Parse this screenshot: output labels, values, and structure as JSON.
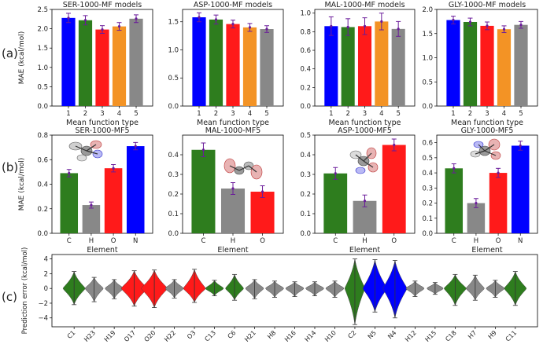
{
  "panel_labels": [
    "(a)",
    "(b)",
    "(c)"
  ],
  "colors": {
    "blue": "#0000ff",
    "green": "#2e7d1e",
    "red": "#ff1a1a",
    "orange": "#f39325",
    "gray": "#888888",
    "error": "#6a1b9a"
  },
  "chart_data": [
    {
      "type": "bar",
      "panel": "(a)",
      "title": "SER-1000-MF models",
      "xlabel": "Mean function type",
      "ylabel": "MAE (kcal/mol)",
      "categories": [
        "1",
        "2",
        "3",
        "4",
        "5"
      ],
      "values": [
        2.28,
        2.22,
        1.98,
        2.06,
        2.26
      ],
      "errors": [
        0.12,
        0.12,
        0.1,
        0.1,
        0.1
      ],
      "colors": [
        "#0000ff",
        "#2e7d1e",
        "#ff1a1a",
        "#f39325",
        "#888888"
      ],
      "ylim": [
        0,
        2.5
      ],
      "yticks": [
        0,
        0.5,
        1.0,
        1.5,
        2.0,
        2.5
      ],
      "ytick_labels": [
        "0.0",
        "0.5",
        "1.0",
        "1.5",
        "2.0",
        "2.5"
      ]
    },
    {
      "type": "bar",
      "panel": "(a)",
      "title": "ASP-1000-MF models",
      "xlabel": "Mean function type",
      "ylabel": "",
      "categories": [
        "1",
        "2",
        "3",
        "4",
        "5"
      ],
      "values": [
        1.58,
        1.54,
        1.46,
        1.4,
        1.37
      ],
      "errors": [
        0.08,
        0.08,
        0.07,
        0.07,
        0.06
      ],
      "colors": [
        "#0000ff",
        "#2e7d1e",
        "#ff1a1a",
        "#f39325",
        "#888888"
      ],
      "ylim": [
        0,
        1.72
      ],
      "yticks": [
        0,
        0.5,
        1.0,
        1.5
      ],
      "ytick_labels": [
        "0.0",
        "0.5",
        "1.0",
        "1.5"
      ]
    },
    {
      "type": "bar",
      "panel": "(a)",
      "title": "MAL-1000-MF models",
      "xlabel": "Mean function type",
      "ylabel": "",
      "categories": [
        "1",
        "2",
        "3",
        "4",
        "5"
      ],
      "values": [
        0.86,
        0.85,
        0.86,
        0.91,
        0.83
      ],
      "errors": [
        0.1,
        0.09,
        0.09,
        0.09,
        0.08
      ],
      "colors": [
        "#0000ff",
        "#2e7d1e",
        "#ff1a1a",
        "#f39325",
        "#888888"
      ],
      "ylim": [
        0,
        1.04
      ],
      "yticks": [
        0,
        0.2,
        0.4,
        0.6,
        0.8,
        1.0
      ],
      "ytick_labels": [
        "0.0",
        "0.2",
        "0.4",
        "0.6",
        "0.8",
        "1.0"
      ]
    },
    {
      "type": "bar",
      "panel": "(a)",
      "title": "GLY-1000-MF models",
      "xlabel": "Mean function type",
      "ylabel": "",
      "categories": [
        "1",
        "2",
        "3",
        "4",
        "5"
      ],
      "values": [
        1.78,
        1.74,
        1.66,
        1.59,
        1.68
      ],
      "errors": [
        0.08,
        0.08,
        0.08,
        0.07,
        0.07
      ],
      "colors": [
        "#0000ff",
        "#2e7d1e",
        "#ff1a1a",
        "#f39325",
        "#888888"
      ],
      "ylim": [
        0,
        2.0
      ],
      "yticks": [
        0,
        0.5,
        1.0,
        1.5,
        2.0
      ],
      "ytick_labels": [
        "0.0",
        "0.5",
        "1.0",
        "1.5",
        "2.0"
      ]
    },
    {
      "type": "bar",
      "panel": "(b)",
      "title": "SER-1000-MF5",
      "xlabel": "Element",
      "ylabel": "MAE (kcal/mol)",
      "categories": [
        "C",
        "H",
        "O",
        "N"
      ],
      "values": [
        0.49,
        0.23,
        0.53,
        0.71
      ],
      "errors": [
        0.03,
        0.025,
        0.03,
        0.03
      ],
      "colors": [
        "#2e7d1e",
        "#888888",
        "#ff1a1a",
        "#0000ff"
      ],
      "ylim": [
        0,
        0.8
      ],
      "yticks": [
        0,
        0.2,
        0.4,
        0.6,
        0.8
      ],
      "ytick_labels": [
        "0.0",
        "0.2",
        "0.4",
        "0.6",
        "0.8"
      ]
    },
    {
      "type": "bar",
      "panel": "(b)",
      "title": "MAL-1000-MF5",
      "xlabel": "Element",
      "ylabel": "",
      "categories": [
        "C",
        "H",
        "O"
      ],
      "values": [
        0.425,
        0.228,
        0.212
      ],
      "errors": [
        0.035,
        0.03,
        0.03
      ],
      "colors": [
        "#2e7d1e",
        "#888888",
        "#ff1a1a"
      ],
      "ylim": [
        0,
        0.5
      ],
      "yticks": [
        0,
        0.1,
        0.2,
        0.3,
        0.4
      ],
      "ytick_labels": [
        "0.0",
        "0.1",
        "0.2",
        "0.3",
        "0.4"
      ]
    },
    {
      "type": "bar",
      "panel": "(b)",
      "title": "ASP-1000-MF5",
      "xlabel": "Element",
      "ylabel": "",
      "categories": [
        "C",
        "H",
        "O"
      ],
      "values": [
        0.305,
        0.165,
        0.45
      ],
      "errors": [
        0.03,
        0.03,
        0.03
      ],
      "colors": [
        "#2e7d1e",
        "#888888",
        "#ff1a1a"
      ],
      "ylim": [
        0,
        0.5
      ],
      "yticks": [
        0,
        0.1,
        0.2,
        0.3,
        0.4,
        0.5
      ],
      "ytick_labels": [
        "0.0",
        "0.1",
        "0.2",
        "0.3",
        "0.4",
        "0.5"
      ]
    },
    {
      "type": "bar",
      "panel": "(b)",
      "title": "GLY-1000-MF5",
      "xlabel": "Element",
      "ylabel": "",
      "categories": [
        "C",
        "H",
        "O",
        "N"
      ],
      "values": [
        0.43,
        0.2,
        0.4,
        0.58
      ],
      "errors": [
        0.03,
        0.03,
        0.03,
        0.03
      ],
      "colors": [
        "#2e7d1e",
        "#888888",
        "#ff1a1a",
        "#0000ff"
      ],
      "ylim": [
        0,
        0.65
      ],
      "yticks": [
        0,
        0.1,
        0.2,
        0.3,
        0.4,
        0.5,
        0.6
      ],
      "ytick_labels": [
        "0.0",
        "0.1",
        "0.2",
        "0.3",
        "0.4",
        "0.5",
        "0.6"
      ]
    },
    {
      "type": "violin",
      "panel": "(c)",
      "title": "",
      "xlabel": "",
      "ylabel": "Prediction error (kcal/mol)",
      "categories": [
        "C1",
        "H23",
        "H19",
        "O17",
        "O20",
        "H22",
        "O3",
        "C13",
        "C6",
        "H21",
        "H8",
        "H16",
        "H14",
        "H10",
        "C2",
        "N5",
        "N4",
        "H12",
        "H15",
        "C18",
        "H7",
        "H9",
        "C11"
      ],
      "element_colors": [
        "#2e7d1e",
        "#888888",
        "#888888",
        "#ff1a1a",
        "#ff1a1a",
        "#888888",
        "#ff1a1a",
        "#2e7d1e",
        "#2e7d1e",
        "#888888",
        "#888888",
        "#888888",
        "#888888",
        "#888888",
        "#2e7d1e",
        "#0000ff",
        "#0000ff",
        "#888888",
        "#888888",
        "#2e7d1e",
        "#888888",
        "#888888",
        "#2e7d1e"
      ],
      "min": [
        -2.2,
        -1.8,
        -1.4,
        -2.4,
        -2.6,
        -1.3,
        -1.9,
        -1.0,
        -1.6,
        -1.4,
        -1.2,
        -1.1,
        -1.0,
        -1.2,
        -4.9,
        -3.2,
        -4.0,
        -1.1,
        -0.8,
        -2.3,
        -1.6,
        -1.2,
        -2.3
      ],
      "max": [
        2.3,
        1.5,
        1.2,
        2.4,
        2.5,
        1.2,
        2.6,
        1.1,
        1.9,
        1.2,
        1.0,
        0.9,
        0.9,
        1.0,
        4.0,
        3.9,
        3.8,
        1.0,
        0.8,
        1.9,
        1.8,
        1.1,
        2.3
      ],
      "half_width": [
        0.55,
        0.45,
        0.45,
        0.65,
        0.65,
        0.45,
        0.55,
        0.45,
        0.45,
        0.45,
        0.45,
        0.45,
        0.45,
        0.45,
        0.5,
        0.6,
        0.6,
        0.45,
        0.4,
        0.55,
        0.45,
        0.45,
        0.55
      ],
      "ylim": [
        -5.2,
        4.6
      ],
      "yticks": [
        -4,
        -2,
        0,
        2,
        4
      ],
      "ytick_labels": [
        "−4",
        "−2",
        "0",
        "2",
        "4"
      ]
    }
  ]
}
